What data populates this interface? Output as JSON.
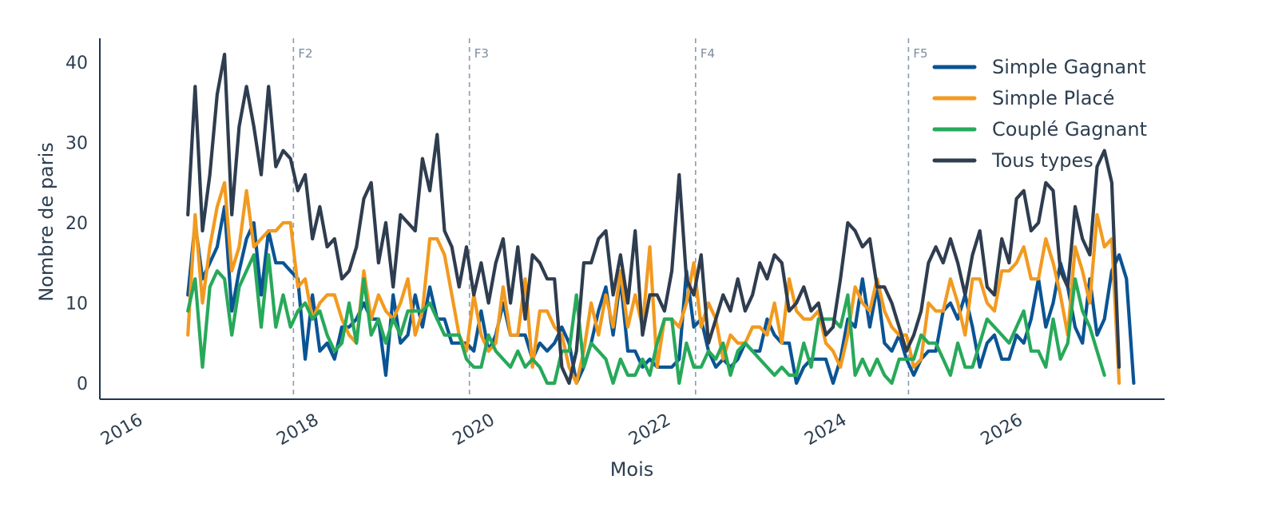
{
  "chart_data": {
    "type": "line",
    "title": "",
    "xlabel": "Mois",
    "ylabel": "Nombre de paris",
    "xlim": [
      2015.5,
      2027.6
    ],
    "ylim": [
      -2,
      43
    ],
    "x_ticks": [
      2016,
      2018,
      2020,
      2022,
      2024,
      2026
    ],
    "y_ticks": [
      0,
      10,
      20,
      30,
      40
    ],
    "grid": false,
    "legend_position": "top-right",
    "x_start": 2016.5,
    "x_step": 0.08333333,
    "phases": [
      {
        "label": "F2",
        "x": 2017.7
      },
      {
        "label": "F3",
        "x": 2019.7
      },
      {
        "label": "F4",
        "x": 2022.27
      },
      {
        "label": "F5",
        "x": 2024.69
      }
    ],
    "series": [
      {
        "name": "Simple Gagnant",
        "color": "#0a5494",
        "values": [
          11,
          20,
          13,
          15,
          17,
          22,
          9,
          14,
          18,
          20,
          11,
          19,
          15,
          15,
          14,
          13,
          3,
          11,
          4,
          5,
          3,
          7,
          7,
          8,
          10,
          8,
          8,
          1,
          11,
          5,
          6,
          11,
          7,
          12,
          8,
          8,
          5,
          5,
          5,
          4,
          9,
          4,
          6,
          10,
          6,
          6,
          6,
          3,
          5,
          4,
          5,
          7,
          5,
          0,
          2,
          5,
          9,
          12,
          6,
          13,
          4,
          4,
          2,
          3,
          2,
          2,
          2,
          3,
          14,
          7,
          8,
          4,
          2,
          3,
          2,
          3,
          5,
          4,
          4,
          8,
          6,
          5,
          5,
          0,
          2,
          3,
          3,
          3,
          0,
          3,
          8,
          7,
          13,
          7,
          12,
          5,
          4,
          6,
          3,
          1,
          3,
          4,
          4,
          9,
          10,
          8,
          11,
          7,
          2,
          5,
          6,
          3,
          3,
          6,
          5,
          8,
          13,
          7,
          10,
          15,
          12,
          7,
          5,
          13,
          6,
          8,
          14,
          16,
          13,
          0
        ],
        "color_name": "blue"
      },
      {
        "name": "Simple Placé",
        "color": "#f29a1f",
        "values": [
          6,
          21,
          10,
          17,
          22,
          25,
          14,
          17,
          24,
          17,
          18,
          19,
          19,
          20,
          20,
          12,
          13,
          8,
          10,
          11,
          11,
          8,
          6,
          5,
          14,
          8,
          11,
          9,
          8,
          10,
          13,
          6,
          9,
          18,
          18,
          16,
          11,
          6,
          4,
          11,
          6,
          4,
          5,
          12,
          6,
          6,
          13,
          2,
          9,
          9,
          7,
          6,
          2,
          0,
          4,
          10,
          6,
          11,
          7,
          14,
          7,
          11,
          7,
          17,
          2,
          8,
          8,
          7,
          10,
          15,
          7,
          10,
          8,
          3,
          6,
          5,
          5,
          7,
          7,
          6,
          10,
          5,
          13,
          9,
          8,
          8,
          9,
          5,
          4,
          2,
          6,
          12,
          10,
          9,
          13,
          9,
          7,
          6,
          6,
          2,
          3,
          10,
          9,
          9,
          13,
          10,
          6,
          13,
          13,
          10,
          9,
          14,
          14,
          15,
          17,
          13,
          13,
          18,
          15,
          11,
          6,
          17,
          14,
          10,
          21,
          17,
          18,
          0
        ],
        "color_name": "orange"
      },
      {
        "name": "Couplé Gagnant",
        "color": "#27a95a",
        "values": [
          9,
          13,
          2,
          12,
          14,
          13,
          6,
          12,
          14,
          16,
          7,
          16,
          7,
          11,
          7,
          9,
          10,
          8,
          9,
          6,
          4,
          5,
          10,
          5,
          13,
          6,
          8,
          5,
          8,
          6,
          9,
          9,
          9,
          10,
          8,
          6,
          6,
          6,
          3,
          2,
          2,
          6,
          4,
          3,
          2,
          4,
          2,
          3,
          2,
          0,
          0,
          4,
          4,
          11,
          2,
          5,
          4,
          3,
          0,
          3,
          1,
          1,
          3,
          1,
          5,
          8,
          8,
          0,
          5,
          2,
          2,
          4,
          3,
          5,
          1,
          4,
          5,
          4,
          3,
          2,
          1,
          2,
          1,
          1,
          5,
          2,
          8,
          8,
          8,
          7,
          11,
          1,
          3,
          1,
          3,
          1,
          0,
          3,
          3,
          3,
          6,
          5,
          5,
          3,
          1,
          5,
          2,
          2,
          5,
          8,
          7,
          6,
          5,
          7,
          9,
          4,
          4,
          2,
          8,
          3,
          5,
          13,
          9,
          7,
          4,
          1
        ],
        "color_name": "green"
      },
      {
        "name": "Tous types",
        "color": "#2e3d4f",
        "values": [
          21,
          37,
          19,
          26,
          36,
          41,
          21,
          32,
          37,
          32,
          26,
          37,
          27,
          29,
          28,
          24,
          26,
          18,
          22,
          17,
          18,
          13,
          14,
          17,
          23,
          25,
          15,
          20,
          12,
          21,
          20,
          19,
          28,
          24,
          31,
          19,
          17,
          12,
          17,
          11,
          15,
          10,
          15,
          18,
          10,
          17,
          8,
          16,
          15,
          13,
          13,
          2,
          0,
          4,
          15,
          15,
          18,
          19,
          11,
          16,
          10,
          19,
          6,
          11,
          11,
          9,
          14,
          26,
          13,
          11,
          16,
          5,
          8,
          11,
          9,
          13,
          9,
          11,
          15,
          13,
          16,
          15,
          9,
          10,
          12,
          9,
          10,
          6,
          7,
          13,
          20,
          19,
          17,
          18,
          12,
          12,
          10,
          7,
          4,
          6,
          9,
          15,
          17,
          15,
          18,
          15,
          11,
          16,
          19,
          12,
          11,
          18,
          15,
          23,
          24,
          19,
          20,
          25,
          24,
          14,
          12,
          22,
          18,
          16,
          27,
          29,
          25,
          2
        ],
        "color_name": "dark-slate"
      }
    ]
  }
}
